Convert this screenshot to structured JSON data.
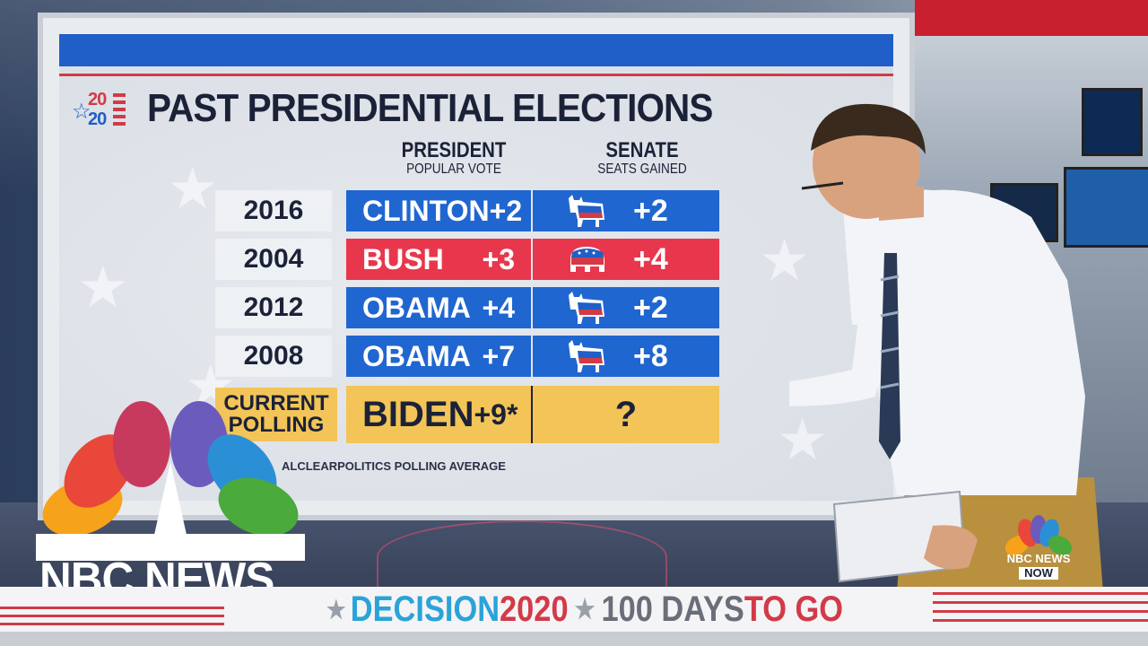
{
  "board": {
    "title": "PAST PRESIDENTIAL ELECTIONS",
    "logo": {
      "top": "20",
      "bottom": "20"
    },
    "columns": {
      "president": {
        "heading": "PRESIDENT",
        "sub": "POPULAR VOTE"
      },
      "senate": {
        "heading": "SENATE",
        "sub": "SEATS GAINED"
      }
    },
    "rows": [
      {
        "year": "2016",
        "candidate": "CLINTON",
        "margin": "+2",
        "party": "democrat",
        "seats": "+2",
        "color": "#2066d0"
      },
      {
        "year": "2004",
        "candidate": "BUSH",
        "margin": "+3",
        "party": "republican",
        "seats": "+4",
        "color": "#e8374c"
      },
      {
        "year": "2012",
        "candidate": "OBAMA",
        "margin": "+4",
        "party": "democrat",
        "seats": "+2",
        "color": "#2066d0"
      },
      {
        "year": "2008",
        "candidate": "OBAMA",
        "margin": "+7",
        "party": "democrat",
        "seats": "+8",
        "color": "#2066d0"
      }
    ],
    "current": {
      "label_line1": "CURRENT",
      "label_line2": "POLLING",
      "candidate": "BIDEN",
      "margin": "+9*",
      "seats": "?",
      "color": "#f3c457"
    },
    "footnote": "ALCLEARPOLITICS POLLING AVERAGE"
  },
  "network": {
    "name": "NBC NEWS",
    "bug_line1": "NBC NEWS",
    "bug_line2": "NOW"
  },
  "banner": {
    "part1": "DECISION ",
    "part2": "2020",
    "part3": "100 DAYS ",
    "part4": "TO GO"
  }
}
